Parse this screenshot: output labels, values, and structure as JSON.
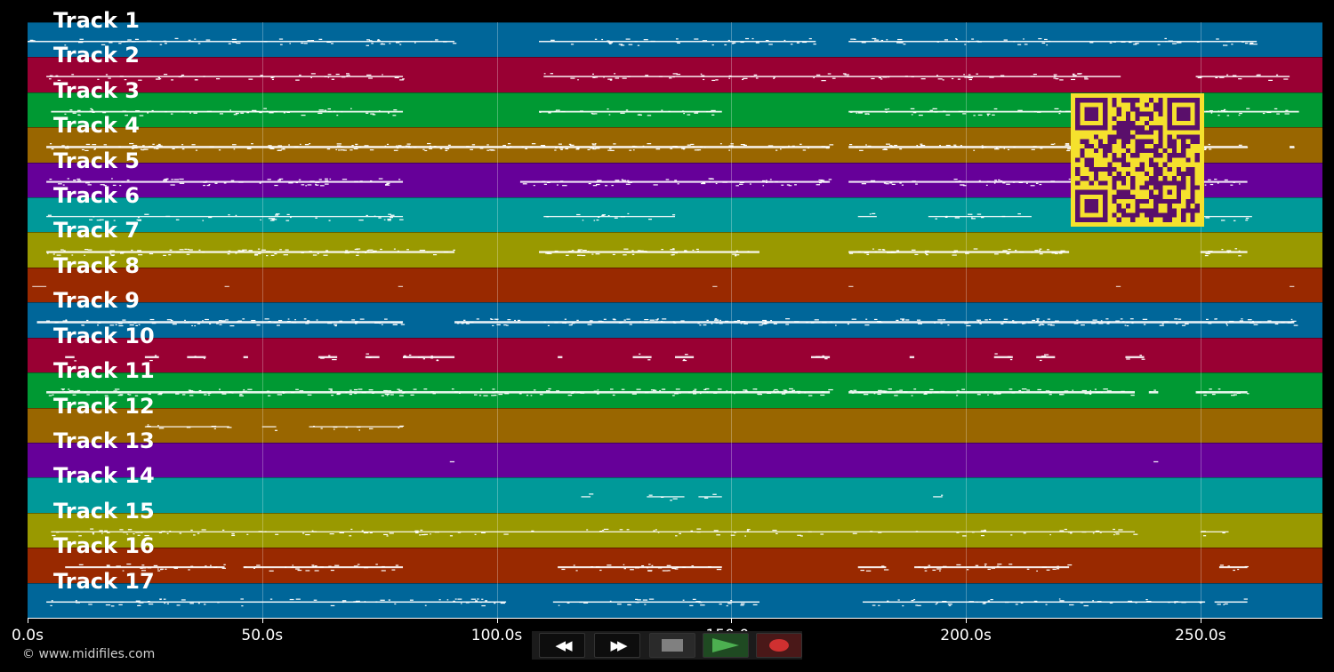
{
  "chart_data": {
    "type": "piano-roll",
    "x_range": [
      0,
      276
    ],
    "x_ticks": [
      {
        "value": 0,
        "label": "0.0s"
      },
      {
        "value": 50,
        "label": "50.0s"
      },
      {
        "value": 100,
        "label": "100.0s"
      },
      {
        "value": 150,
        "label": "150.0s"
      },
      {
        "value": 200,
        "label": "200.0s"
      },
      {
        "value": 250,
        "label": "250.0s"
      }
    ],
    "grid": true,
    "note_color": "#ffffff",
    "tracks": [
      {
        "name": "Track 1",
        "color": "#006699",
        "active": [
          [
            0,
            91
          ],
          [
            109,
            168
          ],
          [
            175,
            262
          ]
        ],
        "density": 0.6
      },
      {
        "name": "Track 2",
        "color": "#990033",
        "active": [
          [
            4,
            80
          ],
          [
            110,
            233
          ],
          [
            249,
            269
          ]
        ],
        "density": 0.6
      },
      {
        "name": "Track 3",
        "color": "#009933",
        "active": [
          [
            5,
            80
          ],
          [
            109,
            148
          ],
          [
            175,
            271
          ]
        ],
        "density": 0.7
      },
      {
        "name": "Track 4",
        "color": "#996600",
        "active": [
          [
            4,
            171
          ],
          [
            175,
            260
          ],
          [
            269,
            270
          ]
        ],
        "density": 1.0
      },
      {
        "name": "Track 5",
        "color": "#660099",
        "active": [
          [
            4,
            80
          ],
          [
            105,
            171
          ],
          [
            175,
            260
          ]
        ],
        "density": 0.8
      },
      {
        "name": "Track 6",
        "color": "#009999",
        "active": [
          [
            4,
            80
          ],
          [
            110,
            138
          ],
          [
            177,
            181
          ],
          [
            192,
            214
          ],
          [
            250,
            261
          ]
        ],
        "density": 0.5
      },
      {
        "name": "Track 7",
        "color": "#999900",
        "active": [
          [
            4,
            91
          ],
          [
            109,
            156
          ],
          [
            175,
            222
          ],
          [
            250,
            260
          ]
        ],
        "density": 0.9
      },
      {
        "name": "Track 8",
        "color": "#992900",
        "active": [
          [
            1,
            4
          ],
          [
            42,
            43
          ],
          [
            79,
            80
          ],
          [
            146,
            147
          ],
          [
            175,
            176
          ],
          [
            232,
            233
          ],
          [
            269,
            270
          ]
        ],
        "density": 0.3
      },
      {
        "name": "Track 9",
        "color": "#006699",
        "active": [
          [
            2,
            80
          ],
          [
            91,
            270
          ]
        ],
        "density": 1.0
      },
      {
        "name": "Track 10",
        "color": "#990033",
        "active": [
          [
            8,
            10
          ],
          [
            25,
            28
          ],
          [
            34,
            38
          ],
          [
            46,
            47
          ],
          [
            62,
            66
          ],
          [
            72,
            75
          ],
          [
            80,
            91
          ],
          [
            113,
            114
          ],
          [
            129,
            133
          ],
          [
            138,
            142
          ],
          [
            167,
            171
          ],
          [
            188,
            189
          ],
          [
            206,
            210
          ],
          [
            215,
            219
          ],
          [
            234,
            238
          ]
        ],
        "density": 0.9
      },
      {
        "name": "Track 11",
        "color": "#009933",
        "active": [
          [
            4,
            171
          ],
          [
            175,
            236
          ],
          [
            239,
            241
          ],
          [
            249,
            260
          ]
        ],
        "density": 1.0
      },
      {
        "name": "Track 12",
        "color": "#996600",
        "active": [
          [
            25,
            43
          ],
          [
            50,
            53
          ],
          [
            60,
            80
          ]
        ],
        "density": 0.5
      },
      {
        "name": "Track 13",
        "color": "#660099",
        "active": [
          [
            90,
            91
          ],
          [
            240,
            241
          ]
        ],
        "density": 0.5
      },
      {
        "name": "Track 14",
        "color": "#009999",
        "active": [
          [
            118,
            120
          ],
          [
            132,
            140
          ],
          [
            143,
            148
          ],
          [
            193,
            195
          ]
        ],
        "density": 0.5
      },
      {
        "name": "Track 15",
        "color": "#999900",
        "active": [
          [
            5,
            236
          ],
          [
            250,
            256
          ]
        ],
        "density": 0.5
      },
      {
        "name": "Track 16",
        "color": "#992900",
        "active": [
          [
            8,
            42
          ],
          [
            46,
            80
          ],
          [
            113,
            148
          ],
          [
            177,
            183
          ],
          [
            189,
            222
          ],
          [
            254,
            260
          ]
        ],
        "density": 0.8
      },
      {
        "name": "Track 17",
        "color": "#006699",
        "active": [
          [
            4,
            102
          ],
          [
            112,
            156
          ],
          [
            178,
            251
          ],
          [
            253,
            260
          ]
        ],
        "density": 0.6
      }
    ]
  },
  "qr_code": {
    "fg": "#5a0f6b",
    "bg": "#f5e12d"
  },
  "transport": {
    "rewind_icon": "rewind-icon",
    "rewind_glyph": "◀◀",
    "fast_forward_icon": "fast-forward-icon",
    "fast_forward_glyph": "▶▶",
    "stop_icon": "stop-icon",
    "play_icon": "play-icon",
    "record_icon": "record-icon",
    "colors": {
      "stop": "#808080",
      "play": "#4caf50",
      "record": "#d03030",
      "play_bg": "#1f4a22",
      "record_bg": "#4a1818"
    }
  },
  "footer": {
    "copyright": "© www.midifiles.com"
  }
}
